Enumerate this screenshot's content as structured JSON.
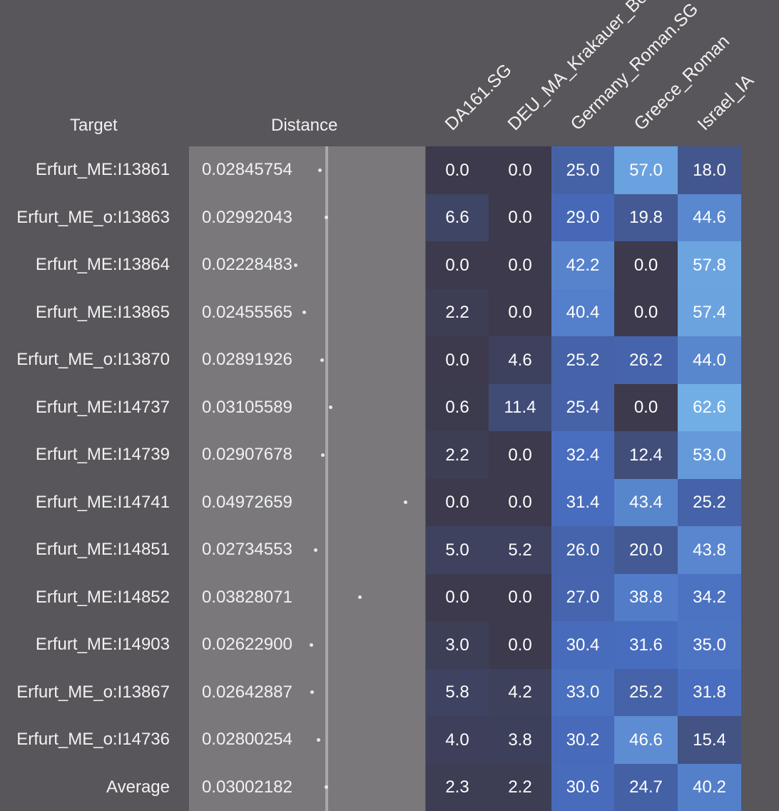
{
  "headers": {
    "target": "Target",
    "distance": "Distance"
  },
  "columns": [
    "DA161.SG",
    "DEU_MA_Krakauer_Be",
    "Germany_Roman.SG",
    "Greece_Roman",
    "Israel_IA"
  ],
  "chart_data": {
    "type": "heatmap",
    "title": "",
    "row_header": "Target",
    "distance_header": "Distance",
    "columns": [
      "DA161.SG",
      "DEU_MA_Krakauer_Be",
      "Germany_Roman.SG",
      "Greece_Roman",
      "Israel_IA"
    ],
    "distance_range": [
      0.0,
      0.06
    ],
    "rows": [
      {
        "target": "Erfurt_ME:I13861",
        "distance": "0.02845754",
        "values": [
          "0.0",
          "0.0",
          "25.0",
          "57.0",
          "18.0"
        ]
      },
      {
        "target": "Erfurt_ME_o:I13863",
        "distance": "0.02992043",
        "values": [
          "6.6",
          "0.0",
          "29.0",
          "19.8",
          "44.6"
        ]
      },
      {
        "target": "Erfurt_ME:I13864",
        "distance": "0.02228483",
        "values": [
          "0.0",
          "0.0",
          "42.2",
          "0.0",
          "57.8"
        ]
      },
      {
        "target": "Erfurt_ME:I13865",
        "distance": "0.02455565",
        "values": [
          "2.2",
          "0.0",
          "40.4",
          "0.0",
          "57.4"
        ]
      },
      {
        "target": "Erfurt_ME_o:I13870",
        "distance": "0.02891926",
        "values": [
          "0.0",
          "4.6",
          "25.2",
          "26.2",
          "44.0"
        ]
      },
      {
        "target": "Erfurt_ME:I14737",
        "distance": "0.03105589",
        "values": [
          "0.6",
          "11.4",
          "25.4",
          "0.0",
          "62.6"
        ]
      },
      {
        "target": "Erfurt_ME:I14739",
        "distance": "0.02907678",
        "values": [
          "2.2",
          "0.0",
          "32.4",
          "12.4",
          "53.0"
        ]
      },
      {
        "target": "Erfurt_ME:I14741",
        "distance": "0.04972659",
        "values": [
          "0.0",
          "0.0",
          "31.4",
          "43.4",
          "25.2"
        ]
      },
      {
        "target": "Erfurt_ME:I14851",
        "distance": "0.02734553",
        "values": [
          "5.0",
          "5.2",
          "26.0",
          "20.0",
          "43.8"
        ]
      },
      {
        "target": "Erfurt_ME:I14852",
        "distance": "0.03828071",
        "values": [
          "0.0",
          "0.0",
          "27.0",
          "38.8",
          "34.2"
        ]
      },
      {
        "target": "Erfurt_ME:I14903",
        "distance": "0.02622900",
        "values": [
          "3.0",
          "0.0",
          "30.4",
          "31.6",
          "35.0"
        ]
      },
      {
        "target": "Erfurt_ME_o:I13867",
        "distance": "0.02642887",
        "values": [
          "5.8",
          "4.2",
          "33.0",
          "25.2",
          "31.8"
        ]
      },
      {
        "target": "Erfurt_ME_o:I14736",
        "distance": "0.02800254",
        "values": [
          "4.0",
          "3.8",
          "30.2",
          "46.6",
          "15.4"
        ]
      },
      {
        "target": "Average",
        "distance": "0.03002182",
        "values": [
          "2.3",
          "2.2",
          "30.6",
          "24.7",
          "40.2"
        ]
      }
    ],
    "colors": {
      "low": "#3c3a4c",
      "high": "#72aee6",
      "distance_panel": "#7a787b",
      "distance_line": "#a9a7ab"
    }
  }
}
